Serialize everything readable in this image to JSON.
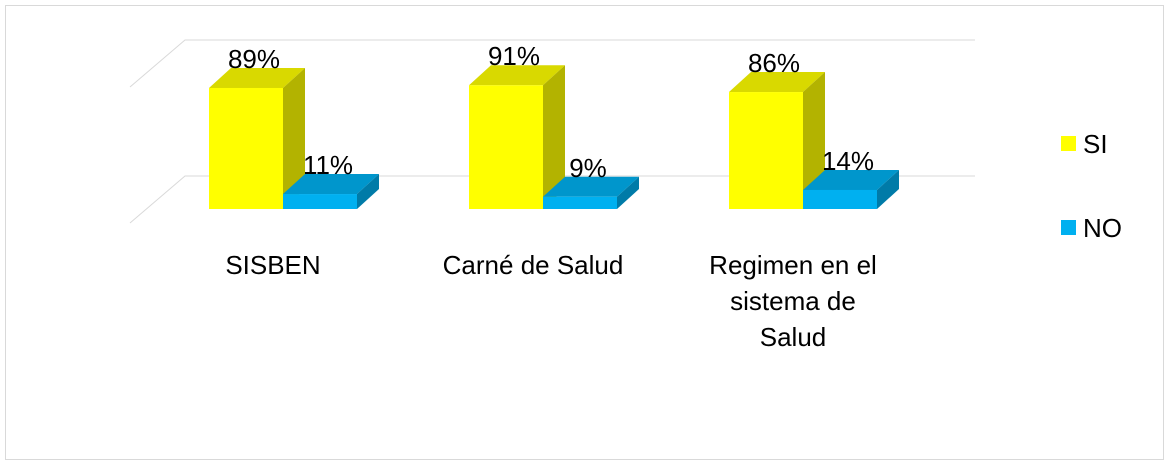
{
  "chart_data": {
    "type": "bar3d",
    "categories": [
      "SISBEN",
      "Carné de Salud",
      "Regimen en el sistema de Salud"
    ],
    "series": [
      {
        "name": "SI",
        "color": "#ffff00",
        "values": [
          89,
          91,
          86
        ],
        "value_labels": [
          "89%",
          "91%",
          "86%"
        ]
      },
      {
        "name": "NO",
        "color": "#00b0f0",
        "values": [
          11,
          9,
          14
        ],
        "value_labels": [
          "11%",
          "9%",
          "14%"
        ]
      }
    ],
    "ylim": [
      0,
      100
    ],
    "grid": true,
    "legend": "right"
  }
}
